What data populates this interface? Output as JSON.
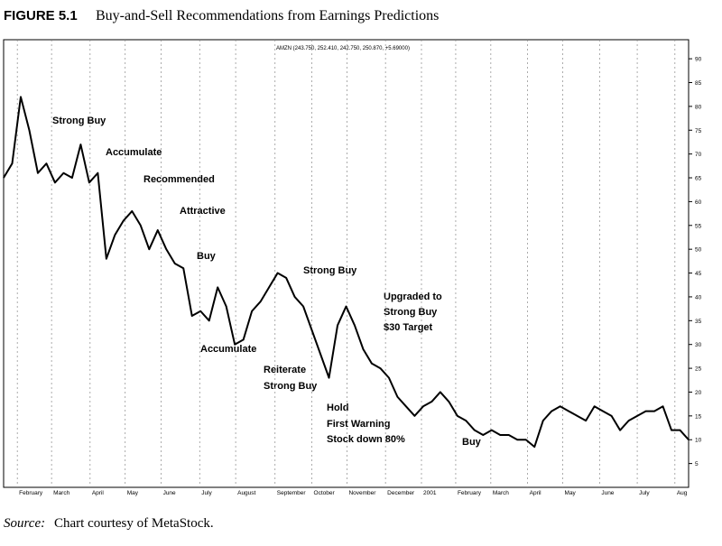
{
  "chart_data": {
    "type": "line",
    "figure_label": "FIGURE 5.1",
    "title": "Buy-and-Sell Recommendations from Earnings Predictions",
    "subtitle": "AMZN (243.750, 252.410, 242.750, 250.870, +5.69000)",
    "source_label": "Source:",
    "source": "Chart courtesy of MetaStock.",
    "annotations": [
      [
        "Strong Buy"
      ],
      [
        "Accumulate"
      ],
      [
        "Recommended"
      ],
      [
        "Attractive"
      ],
      [
        "Buy"
      ],
      [
        "Accumulate"
      ],
      [
        "Strong Buy"
      ],
      [
        "Reiterate",
        "Strong Buy"
      ],
      [
        "Hold",
        "First Warning",
        "Stock down 80%"
      ],
      [
        "Upgraded to",
        "Strong Buy",
        "$30 Target"
      ],
      [
        "Buy"
      ]
    ],
    "x": [
      0,
      1,
      2,
      3,
      4,
      5,
      6,
      7,
      8,
      9,
      10,
      11,
      12,
      13,
      14,
      15,
      16,
      17,
      18,
      19,
      20,
      21,
      22,
      23,
      24,
      25,
      26,
      27,
      28,
      29,
      30,
      31,
      32,
      33,
      34,
      35,
      36,
      37,
      38,
      39,
      40,
      41,
      42,
      43,
      44,
      45,
      46,
      47,
      48,
      49,
      50,
      51,
      52,
      53,
      54,
      55,
      56,
      57,
      58,
      59,
      60,
      61,
      62,
      63,
      64,
      65,
      66,
      67,
      68,
      69,
      70,
      71,
      72,
      73,
      74,
      75,
      76,
      77,
      78,
      79,
      80
    ],
    "series": [
      {
        "color": "#000000",
        "values": [
          65,
          68,
          82,
          75,
          66,
          68,
          64,
          66,
          65,
          72,
          64,
          66,
          48,
          53,
          56,
          58,
          55,
          50,
          54,
          50,
          47,
          46,
          36,
          37,
          35,
          42,
          38,
          30,
          31,
          37,
          39,
          42,
          45,
          44,
          40,
          38,
          33,
          28,
          23,
          34,
          38,
          34,
          29,
          26,
          25,
          23,
          19,
          17,
          15,
          17,
          18,
          20,
          18,
          15,
          14,
          12,
          11,
          12,
          11,
          11,
          10,
          10,
          8.5,
          14,
          16,
          17,
          16,
          15,
          14,
          17,
          16,
          15,
          12,
          14,
          15,
          16,
          16,
          17,
          12,
          12,
          10
        ]
      }
    ],
    "xlim": [
      0,
      80
    ],
    "xticks": [
      {
        "value": 1.6,
        "label": "February"
      },
      {
        "value": 5.6,
        "label": "March"
      },
      {
        "value": 10.1,
        "label": "April"
      },
      {
        "value": 14.2,
        "label": "May"
      },
      {
        "value": 18.4,
        "label": "June"
      },
      {
        "value": 22.9,
        "label": "July"
      },
      {
        "value": 27.1,
        "label": "August"
      },
      {
        "value": 31.7,
        "label": "September"
      },
      {
        "value": 36,
        "label": "October"
      },
      {
        "value": 40.1,
        "label": "November"
      },
      {
        "value": 44.6,
        "label": "December"
      },
      {
        "value": 48.8,
        "label": "2001"
      },
      {
        "value": 52.8,
        "label": "February"
      },
      {
        "value": 56.9,
        "label": "March"
      },
      {
        "value": 61.2,
        "label": "April"
      },
      {
        "value": 65.3,
        "label": "May"
      },
      {
        "value": 69.6,
        "label": "June"
      },
      {
        "value": 74,
        "label": "July"
      },
      {
        "value": 78.4,
        "label": "Aug"
      }
    ],
    "ylim": [
      0,
      94
    ],
    "yticks": [
      5,
      10,
      15,
      20,
      25,
      30,
      35,
      40,
      45,
      50,
      55,
      60,
      65,
      70,
      75,
      80,
      85,
      90
    ],
    "x_grid": true
  }
}
